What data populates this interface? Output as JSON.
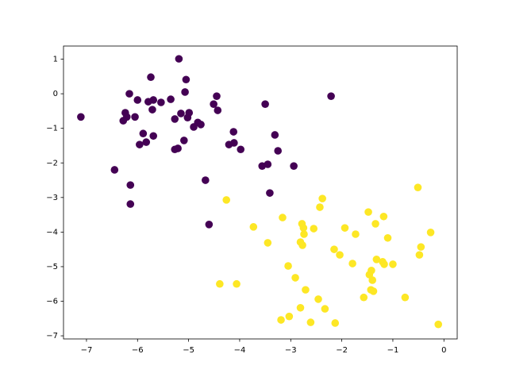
{
  "chart_data": {
    "type": "scatter",
    "xlim": [
      -7.45,
      0.26
    ],
    "ylim": [
      -7.09,
      1.38
    ],
    "xticks": [
      {
        "value": -7,
        "label": "−7"
      },
      {
        "value": -6,
        "label": "−6"
      },
      {
        "value": -5,
        "label": "−5"
      },
      {
        "value": -4,
        "label": "−4"
      },
      {
        "value": -3,
        "label": "−3"
      },
      {
        "value": -2,
        "label": "−2"
      },
      {
        "value": -1,
        "label": "−1"
      },
      0
    ],
    "yticks": [
      {
        "value": -7,
        "label": "−7"
      },
      {
        "value": -6,
        "label": "−6"
      },
      {
        "value": -5,
        "label": "−5"
      },
      {
        "value": -4,
        "label": "−4"
      },
      {
        "value": -3,
        "label": "−3"
      },
      {
        "value": -2,
        "label": "−2"
      },
      {
        "value": -1,
        "label": "−1"
      },
      0,
      1
    ],
    "grid": false,
    "series": [
      {
        "color": "#440154",
        "x": [
          -7.11,
          -6.45,
          -6.16,
          -6.24,
          -6.21,
          -6.28,
          -6.05,
          -6.0,
          -6.14,
          -6.14,
          -5.96,
          -5.89,
          -5.83,
          -5.79,
          -5.74,
          -5.69,
          -5.71,
          -5.69,
          -5.54,
          -5.35,
          -5.27,
          -5.27,
          -5.19,
          -5.21,
          -5.15,
          -5.07,
          -5.05,
          -5.09,
          -5.02,
          -4.99,
          -4.9,
          -4.82,
          -4.76,
          -4.67,
          -4.6,
          -4.51,
          -4.45,
          -4.43,
          -4.21,
          -4.12,
          -4.11,
          -3.98,
          -3.56,
          -3.5,
          -3.45,
          -3.41,
          -3.31,
          -3.25,
          -2.94,
          -2.21
        ],
        "y": [
          -0.67,
          -2.2,
          0.0,
          -0.55,
          -0.67,
          -0.78,
          -0.67,
          -0.18,
          -2.64,
          -3.19,
          -1.47,
          -1.15,
          -1.4,
          -0.23,
          0.48,
          -0.18,
          -0.46,
          -1.22,
          -0.25,
          -0.16,
          -0.73,
          -1.61,
          1.01,
          -1.58,
          -0.57,
          0.05,
          0.41,
          -1.35,
          -0.69,
          -0.55,
          -0.96,
          -0.83,
          -0.89,
          -2.5,
          -3.78,
          -0.3,
          -0.07,
          -0.48,
          -1.47,
          -1.1,
          -1.42,
          -1.61,
          -2.09,
          -0.3,
          -2.04,
          -2.87,
          -1.19,
          -1.65,
          -2.09,
          -0.07
        ]
      },
      {
        "color": "#fde725",
        "x": [
          -4.26,
          -4.39,
          -4.06,
          -3.73,
          -3.45,
          -3.16,
          -3.19,
          -3.03,
          -3.05,
          -2.91,
          -2.81,
          -2.81,
          -2.78,
          -2.75,
          -2.77,
          -2.74,
          -2.71,
          -2.61,
          -2.55,
          -2.46,
          -2.43,
          -2.38,
          -2.33,
          -2.15,
          -2.13,
          -2.04,
          -1.94,
          -1.79,
          -1.73,
          -1.57,
          -1.48,
          -1.46,
          -1.42,
          -1.43,
          -1.4,
          -1.38,
          -1.34,
          -1.32,
          -1.18,
          -1.2,
          -1.17,
          -1.1,
          -1.0,
          -0.76,
          -0.51,
          -0.48,
          -0.45,
          -0.26,
          -0.11
        ],
        "y": [
          -3.07,
          -5.5,
          -5.5,
          -3.85,
          -4.31,
          -3.58,
          -6.54,
          -6.44,
          -4.98,
          -5.32,
          -4.29,
          -6.19,
          -3.76,
          -3.88,
          -4.38,
          -4.06,
          -5.67,
          -6.61,
          -3.9,
          -5.94,
          -3.28,
          -3.03,
          -6.22,
          -4.5,
          -6.63,
          -4.66,
          -3.88,
          -4.91,
          -4.06,
          -5.89,
          -3.42,
          -5.23,
          -5.11,
          -5.67,
          -5.39,
          -5.71,
          -3.76,
          -4.79,
          -3.55,
          -4.86,
          -4.93,
          -4.17,
          -4.93,
          -5.89,
          -2.71,
          -4.66,
          -4.43,
          -4.01,
          -6.67
        ]
      }
    ]
  }
}
